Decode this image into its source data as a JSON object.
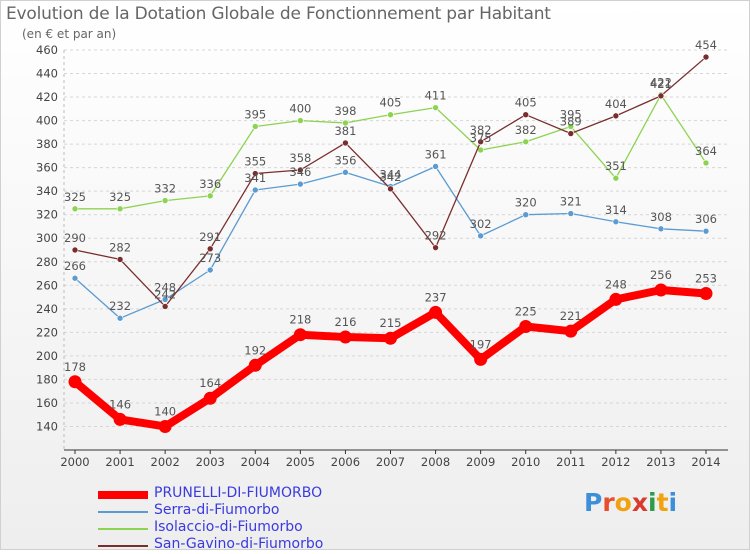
{
  "header": {
    "title": "Evolution de la Dotation Globale de Fonctionnement par Habitant",
    "subtitle": "(en € et par an)"
  },
  "logo": {
    "text": "Proxiti",
    "letter_colors": [
      "#3c8fd8",
      "#e94e2a",
      "#f2a10f",
      "#d93a2e",
      "#2e9b49",
      "#f2a10f",
      "#3c8fd8"
    ]
  },
  "chart_data": {
    "type": "line",
    "title": "Evolution de la Dotation Globale de Fonctionnement par Habitant",
    "ylabel": "(en € et par an)",
    "xlabel": "",
    "ylim": [
      120,
      460
    ],
    "y_ticks": [
      140,
      160,
      180,
      200,
      220,
      240,
      260,
      280,
      300,
      320,
      340,
      360,
      380,
      400,
      420,
      440,
      460
    ],
    "y_tick_labels": [
      "140",
      "160",
      "180",
      "200",
      "220",
      "240",
      "260",
      "280",
      "300",
      "320",
      "340",
      "360",
      "380",
      "400",
      "420",
      "440",
      "460"
    ],
    "grid": "horizontal dashed",
    "legend_position": "bottom-left",
    "categories": [
      "2000",
      "2001",
      "2002",
      "2003",
      "2004",
      "2005",
      "2006",
      "2007",
      "2008",
      "2009",
      "2010",
      "2011",
      "2012",
      "2013",
      "2014"
    ],
    "series": [
      {
        "name": "PRUNELLI-DI-FIUMORBO",
        "values": [
          178,
          146,
          140,
          164,
          192,
          218,
          216,
          215,
          237,
          197,
          225,
          221,
          248,
          256,
          253
        ],
        "color": "#ff0000",
        "label_color": "#555555",
        "emphasis": true
      },
      {
        "name": "Serra-di-Fiumorbo",
        "values": [
          266,
          232,
          248,
          273,
          341,
          346,
          356,
          344,
          361,
          302,
          320,
          321,
          314,
          308,
          306
        ],
        "color": "#5b9bd1",
        "label_color": "#555555",
        "emphasis": false
      },
      {
        "name": "Isolaccio-di-Fiumorbo",
        "values": [
          325,
          325,
          332,
          336,
          395,
          400,
          398,
          405,
          411,
          375,
          382,
          395,
          351,
          422,
          364
        ],
        "color": "#8dd352",
        "label_color": "#555555",
        "emphasis": false
      },
      {
        "name": "San-Gavino-di-Fiumorbo",
        "values": [
          290,
          282,
          242,
          291,
          355,
          358,
          381,
          342,
          292,
          382,
          405,
          389,
          404,
          421,
          454
        ],
        "color": "#7a2d2d",
        "label_color": "#555555",
        "emphasis": false
      }
    ]
  }
}
